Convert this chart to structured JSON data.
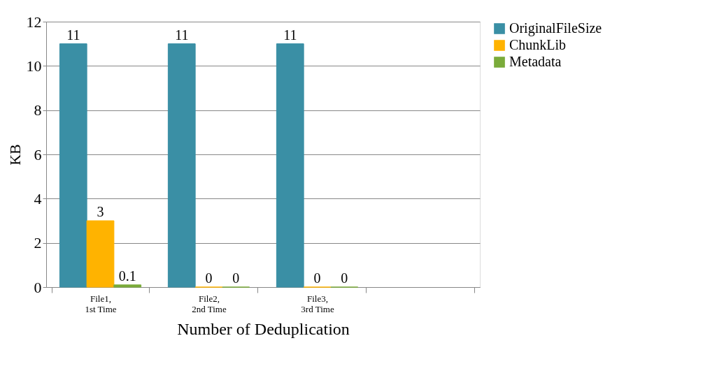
{
  "chart_data": {
    "type": "bar",
    "xlabel": "Number of Deduplication",
    "ylabel": "KB",
    "categories": [
      "File1,\n1st Time",
      "File2,\n2nd Time",
      "File3,\n3rd Time",
      null
    ],
    "series": [
      {
        "name": "OriginalFileSize",
        "color": "#3a8fa5",
        "values": [
          11,
          11,
          11,
          null
        ]
      },
      {
        "name": "ChunkLib",
        "color": "#ffb300",
        "values": [
          3,
          0,
          0,
          null
        ]
      },
      {
        "name": "Metadata",
        "color": "#7aab3a",
        "values": [
          0.1,
          0,
          0,
          null
        ]
      }
    ],
    "ylim": [
      0,
      12
    ],
    "yticks": [
      0,
      2,
      4,
      6,
      8,
      10,
      12
    ],
    "grid": "y",
    "legend": "right",
    "data_labels": true
  }
}
